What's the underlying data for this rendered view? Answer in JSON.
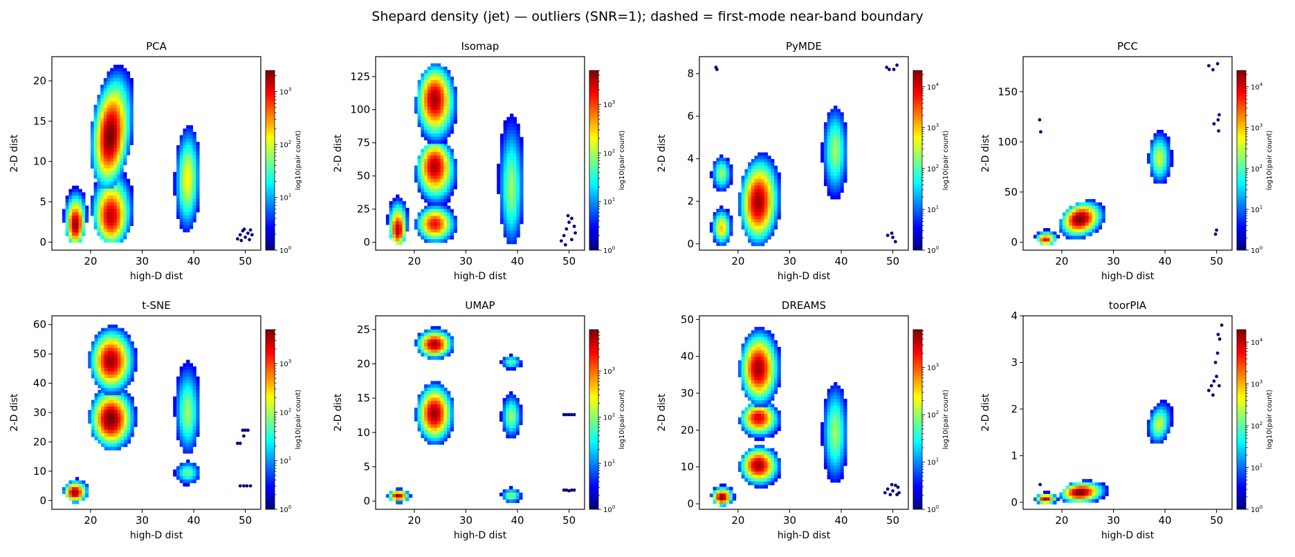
{
  "figure": {
    "suptitle": "Shepard density (jet) — outliers (SNR=1); dashed = first-mode near-band boundary",
    "colorbar_label": "log10(pair count)",
    "colormap": [
      "#00007f",
      "#0000ff",
      "#007fff",
      "#00ffff",
      "#7fff7f",
      "#ffff00",
      "#ff7f00",
      "#ff0000",
      "#7f0000"
    ]
  },
  "chart_data": [
    {
      "type": "heatmap",
      "title": "PCA",
      "xlabel": "high-D dist",
      "ylabel": "2-D dist",
      "xlim": [
        12.5,
        53
      ],
      "ylim": [
        -1,
        23
      ],
      "xticks": [
        20,
        30,
        40,
        50
      ],
      "yticks": [
        0,
        5,
        10,
        15,
        20
      ],
      "cbar": {
        "min_exp": 0,
        "max_exp": 3.4,
        "ticks": [
          0,
          1,
          2,
          3
        ]
      },
      "blobs": [
        {
          "x": [
            14.5,
            19
          ],
          "y": [
            0,
            7
          ],
          "peak_x": 16.8,
          "peak_y": 2,
          "intensity": 0.95,
          "skew": 0.08
        },
        {
          "x": [
            20,
            28
          ],
          "y": [
            0,
            9.5
          ],
          "peak_x": 23.5,
          "peak_y": 3,
          "intensity": 0.9
        },
        {
          "x": [
            20,
            28
          ],
          "y": [
            7,
            22
          ],
          "peak_x": 23.5,
          "peak_y": 13,
          "intensity": 0.95,
          "skew": 0.55
        },
        {
          "x": [
            36,
            41
          ],
          "y": [
            1.5,
            14.5
          ],
          "peak_x": 38.5,
          "peak_y": 8,
          "intensity": 0.55,
          "skew": 0.15
        }
      ],
      "outliers": [
        [
          48.5,
          0.4
        ],
        [
          49,
          0.9
        ],
        [
          49.5,
          1.4
        ],
        [
          50,
          0.6
        ],
        [
          50.5,
          1.1
        ],
        [
          51,
          1.5
        ],
        [
          49.2,
          0.2
        ],
        [
          50.8,
          0.3
        ],
        [
          51.3,
          0.9
        ],
        [
          49.8,
          1.6
        ]
      ]
    },
    {
      "type": "heatmap",
      "title": "Isomap",
      "xlabel": "high-D dist",
      "ylabel": "2-D dist",
      "xlim": [
        12.5,
        53
      ],
      "ylim": [
        -6,
        140
      ],
      "xticks": [
        20,
        30,
        40,
        50
      ],
      "yticks": [
        0,
        25,
        50,
        75,
        100,
        125
      ],
      "cbar": {
        "min_exp": 0,
        "max_exp": 3.7,
        "ticks": [
          0,
          1,
          2,
          3
        ]
      },
      "blobs": [
        {
          "x": [
            14.5,
            18.5
          ],
          "y": [
            0,
            36
          ],
          "peak_x": 16.5,
          "peak_y": 8,
          "intensity": 0.95
        },
        {
          "x": [
            20,
            28
          ],
          "y": [
            0,
            30
          ],
          "peak_x": 23.5,
          "peak_y": 15,
          "intensity": 0.8
        },
        {
          "x": [
            20,
            28
          ],
          "y": [
            28,
            78
          ],
          "peak_x": 23.5,
          "peak_y": 60,
          "intensity": 0.9
        },
        {
          "x": [
            20,
            28
          ],
          "y": [
            75,
            135
          ],
          "peak_x": 23.5,
          "peak_y": 110,
          "intensity": 0.9
        },
        {
          "x": [
            36,
            41
          ],
          "y": [
            0,
            97
          ],
          "peak_x": 38.5,
          "peak_y": 40,
          "intensity": 0.45
        }
      ],
      "outliers": [
        [
          48.5,
          1
        ],
        [
          49,
          5
        ],
        [
          49.5,
          10
        ],
        [
          50,
          15
        ],
        [
          50.5,
          18
        ],
        [
          51,
          12
        ],
        [
          49.3,
          -2
        ],
        [
          50.5,
          2
        ],
        [
          51.2,
          7
        ],
        [
          49.8,
          20
        ]
      ]
    },
    {
      "type": "heatmap",
      "title": "PyMDE",
      "xlabel": "high-D dist",
      "ylabel": "2-D dist",
      "xlim": [
        12.5,
        53
      ],
      "ylim": [
        -0.3,
        8.8
      ],
      "xticks": [
        20,
        30,
        40,
        50
      ],
      "yticks": [
        0,
        2,
        4,
        6,
        8
      ],
      "cbar": {
        "min_exp": 0,
        "max_exp": 4.4,
        "ticks": [
          0,
          1,
          2,
          3,
          4
        ]
      },
      "blobs": [
        {
          "x": [
            14.5,
            18.5
          ],
          "y": [
            0,
            1.8
          ],
          "peak_x": 16.5,
          "peak_y": 0.8,
          "intensity": 0.6
        },
        {
          "x": [
            14.5,
            18.5
          ],
          "y": [
            2.5,
            4.2
          ],
          "peak_x": 16.5,
          "peak_y": 3.4,
          "intensity": 0.45
        },
        {
          "x": [
            20,
            28
          ],
          "y": [
            0,
            4.3
          ],
          "peak_x": 23.5,
          "peak_y": 2,
          "intensity": 0.9,
          "skew": 0.15
        },
        {
          "x": [
            36,
            41
          ],
          "y": [
            2.2,
            6.5
          ],
          "peak_x": 38.5,
          "peak_y": 4.5,
          "intensity": 0.45
        }
      ],
      "outliers": [
        [
          15.7,
          8.3
        ],
        [
          15.9,
          8.2
        ],
        [
          48.8,
          8.3
        ],
        [
          49.3,
          8.2
        ],
        [
          50.2,
          8.2
        ],
        [
          50.8,
          8.4
        ],
        [
          49,
          0.4
        ],
        [
          50,
          0.3
        ],
        [
          50.5,
          0.1
        ],
        [
          49.8,
          0.5
        ]
      ]
    },
    {
      "type": "heatmap",
      "title": "PCC",
      "xlabel": "high-D dist",
      "ylabel": "2-D dist",
      "xlim": [
        12.5,
        53
      ],
      "ylim": [
        -8,
        185
      ],
      "xticks": [
        20,
        30,
        40,
        50
      ],
      "yticks": [
        0,
        50,
        100,
        150
      ],
      "cbar": {
        "min_exp": 0,
        "max_exp": 4.4,
        "ticks": [
          0,
          1,
          2,
          3,
          4
        ]
      },
      "blobs": [
        {
          "x": [
            14.5,
            19
          ],
          "y": [
            0,
            14
          ],
          "peak_x": 16.5,
          "peak_y": 3,
          "intensity": 0.9
        },
        {
          "x": [
            19.5,
            28
          ],
          "y": [
            5,
            43
          ],
          "peak_x": 23,
          "peak_y": 25,
          "intensity": 0.95,
          "skew": 0.5
        },
        {
          "x": [
            36.5,
            41
          ],
          "y": [
            60,
            112
          ],
          "peak_x": 38.5,
          "peak_y": 85,
          "intensity": 0.5
        }
      ],
      "outliers": [
        [
          15.7,
          122
        ],
        [
          15.9,
          110
        ],
        [
          48.5,
          176
        ],
        [
          49.3,
          172
        ],
        [
          50.2,
          178
        ],
        [
          50.5,
          127
        ],
        [
          50.3,
          122
        ],
        [
          49.5,
          118
        ],
        [
          50.4,
          111
        ],
        [
          49.8,
          8
        ],
        [
          50,
          12
        ]
      ]
    },
    {
      "type": "heatmap",
      "title": "t-SNE",
      "xlabel": "high-D dist",
      "ylabel": "2-D dist",
      "xlim": [
        12.5,
        53
      ],
      "ylim": [
        -3,
        63
      ],
      "xticks": [
        20,
        30,
        40,
        50
      ],
      "yticks": [
        0,
        10,
        20,
        30,
        40,
        50,
        60
      ],
      "cbar": {
        "min_exp": 0,
        "max_exp": 3.7,
        "ticks": [
          0,
          1,
          2,
          3
        ]
      },
      "blobs": [
        {
          "x": [
            14.5,
            19.5
          ],
          "y": [
            0,
            8
          ],
          "peak_x": 16.5,
          "peak_y": 3,
          "intensity": 0.95
        },
        {
          "x": [
            19.5,
            28.5
          ],
          "y": [
            18,
            40
          ],
          "peak_x": 23.5,
          "peak_y": 28,
          "intensity": 0.95
        },
        {
          "x": [
            19.5,
            28.5
          ],
          "y": [
            37,
            60
          ],
          "peak_x": 23.5,
          "peak_y": 48,
          "intensity": 0.9
        },
        {
          "x": [
            36,
            41
          ],
          "y": [
            17,
            48
          ],
          "peak_x": 38.5,
          "peak_y": 30,
          "intensity": 0.45
        },
        {
          "x": [
            36,
            41
          ],
          "y": [
            6,
            14
          ],
          "peak_x": 38.5,
          "peak_y": 10,
          "intensity": 0.4
        }
      ],
      "outliers": [
        [
          48.5,
          19.5
        ],
        [
          49,
          19.5
        ],
        [
          49.5,
          24
        ],
        [
          50,
          24
        ],
        [
          50.5,
          24
        ],
        [
          49.7,
          22
        ],
        [
          49,
          5
        ],
        [
          49.7,
          5
        ],
        [
          50.3,
          5
        ],
        [
          51,
          5
        ]
      ]
    },
    {
      "type": "heatmap",
      "title": "UMAP",
      "xlabel": "high-D dist",
      "ylabel": "2-D dist",
      "xlim": [
        12.5,
        53
      ],
      "ylim": [
        -1.2,
        27
      ],
      "xticks": [
        20,
        30,
        40,
        50
      ],
      "yticks": [
        0,
        5,
        10,
        15,
        20,
        25
      ],
      "cbar": {
        "min_exp": 0,
        "max_exp": 3.9,
        "ticks": [
          0,
          1,
          2,
          3
        ]
      },
      "blobs": [
        {
          "x": [
            14.5,
            19
          ],
          "y": [
            0,
            2
          ],
          "peak_x": 16.5,
          "peak_y": 1,
          "intensity": 0.9
        },
        {
          "x": [
            20,
            27.5
          ],
          "y": [
            8.5,
            17.5
          ],
          "peak_x": 23.5,
          "peak_y": 13,
          "intensity": 0.9
        },
        {
          "x": [
            20,
            27.5
          ],
          "y": [
            21,
            25.5
          ],
          "peak_x": 23.5,
          "peak_y": 23,
          "intensity": 0.9
        },
        {
          "x": [
            36.5,
            40.5
          ],
          "y": [
            9.5,
            16
          ],
          "peak_x": 38.5,
          "peak_y": 12.5,
          "intensity": 0.45
        },
        {
          "x": [
            36.5,
            40.5
          ],
          "y": [
            19.5,
            21.5
          ],
          "peak_x": 38.5,
          "peak_y": 20.5,
          "intensity": 0.4
        },
        {
          "x": [
            36.5,
            40.5
          ],
          "y": [
            0,
            2.2
          ],
          "peak_x": 38.5,
          "peak_y": 1,
          "intensity": 0.45
        }
      ],
      "outliers": [
        [
          49,
          12.6
        ],
        [
          49.5,
          12.6
        ],
        [
          50,
          12.6
        ],
        [
          50.5,
          12.6
        ],
        [
          51,
          12.6
        ],
        [
          49,
          1.6
        ],
        [
          49.5,
          1.6
        ],
        [
          50,
          1.5
        ],
        [
          50.5,
          1.6
        ],
        [
          51,
          1.6
        ]
      ]
    },
    {
      "type": "heatmap",
      "title": "DREAMS",
      "xlabel": "high-D dist",
      "ylabel": "2-D dist",
      "xlim": [
        12.5,
        53
      ],
      "ylim": [
        -1.5,
        51
      ],
      "xticks": [
        20,
        30,
        40,
        50
      ],
      "yticks": [
        0,
        10,
        20,
        30,
        40,
        50
      ],
      "cbar": {
        "min_exp": 0,
        "max_exp": 3.8,
        "ticks": [
          0,
          1,
          2,
          3
        ]
      },
      "blobs": [
        {
          "x": [
            14.5,
            19
          ],
          "y": [
            0,
            5.5
          ],
          "peak_x": 16.5,
          "peak_y": 2,
          "intensity": 0.95
        },
        {
          "x": [
            20,
            28
          ],
          "y": [
            5,
            16
          ],
          "peak_x": 23.5,
          "peak_y": 11,
          "intensity": 0.9
        },
        {
          "x": [
            20,
            28
          ],
          "y": [
            18,
            28
          ],
          "peak_x": 23.5,
          "peak_y": 24,
          "intensity": 0.85
        },
        {
          "x": [
            20,
            28
          ],
          "y": [
            27,
            48
          ],
          "peak_x": 23.5,
          "peak_y": 37,
          "intensity": 0.9
        },
        {
          "x": [
            36,
            41
          ],
          "y": [
            6,
            33
          ],
          "peak_x": 38.5,
          "peak_y": 20,
          "intensity": 0.45
        }
      ],
      "outliers": [
        [
          48.5,
          3
        ],
        [
          49,
          4
        ],
        [
          49.5,
          2.5
        ],
        [
          50,
          3.5
        ],
        [
          50.5,
          5
        ],
        [
          51,
          4.5
        ],
        [
          50.8,
          2.5
        ],
        [
          49.8,
          5.2
        ],
        [
          51.2,
          3
        ]
      ]
    },
    {
      "type": "heatmap",
      "title": "toorPIA",
      "xlabel": "high-D dist",
      "ylabel": "2-D dist",
      "xlim": [
        12.5,
        53
      ],
      "ylim": [
        -0.15,
        4
      ],
      "xticks": [
        20,
        30,
        40,
        50
      ],
      "yticks": [
        0,
        1,
        2,
        3,
        4
      ],
      "cbar": {
        "min_exp": 0,
        "max_exp": 4.3,
        "ticks": [
          0,
          1,
          2,
          3,
          4
        ]
      },
      "blobs": [
        {
          "x": [
            14.5,
            19
          ],
          "y": [
            0,
            0.25
          ],
          "peak_x": 16.5,
          "peak_y": 0.1,
          "intensity": 0.9
        },
        {
          "x": [
            19.5,
            28.5
          ],
          "y": [
            0,
            0.5
          ],
          "peak_x": 23,
          "peak_y": 0.25,
          "intensity": 0.95,
          "skew": 0.3
        },
        {
          "x": [
            36.5,
            41
          ],
          "y": [
            1.3,
            2.2
          ],
          "peak_x": 38.5,
          "peak_y": 1.7,
          "intensity": 0.5,
          "skew": 0.5
        }
      ],
      "outliers": [
        [
          15.8,
          0.38
        ],
        [
          48.5,
          2.4
        ],
        [
          49,
          2.5
        ],
        [
          49.5,
          2.6
        ],
        [
          50,
          2.7
        ],
        [
          50.5,
          2.5
        ],
        [
          49.3,
          2.3
        ],
        [
          50.2,
          3.2
        ],
        [
          50.6,
          3.5
        ],
        [
          50.3,
          3.6
        ],
        [
          51,
          3.8
        ],
        [
          49.8,
          3.0
        ]
      ]
    }
  ]
}
